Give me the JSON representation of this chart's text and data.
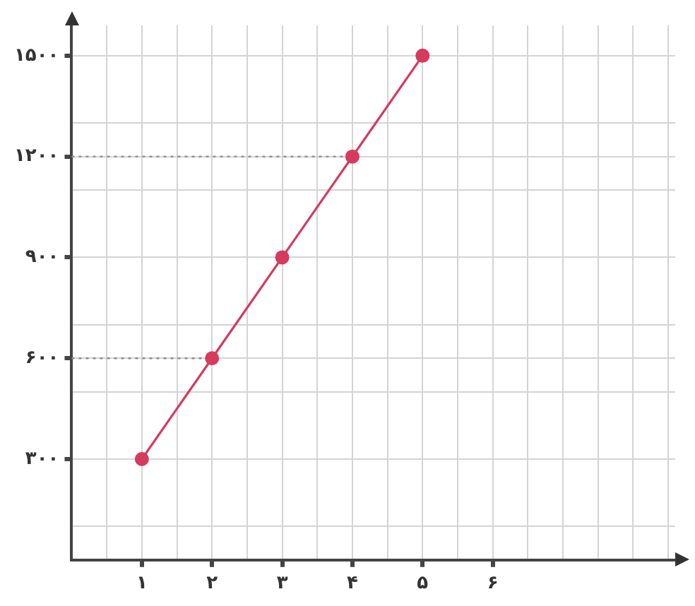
{
  "chart_data": {
    "type": "line",
    "x": [
      1,
      2,
      3,
      4,
      5
    ],
    "values": [
      300,
      600,
      900,
      1200,
      1500
    ],
    "color": "#d63a5c",
    "marker": "circle",
    "line_style": "solid",
    "xlim": [
      0,
      8.6
    ],
    "ylim": [
      0,
      1590
    ],
    "xticks": [
      {
        "value": 0.5,
        "label": null
      },
      {
        "value": 1,
        "label": "۱"
      },
      {
        "value": 1.5,
        "label": null
      },
      {
        "value": 2,
        "label": "۲"
      },
      {
        "value": 2.5,
        "label": null
      },
      {
        "value": 3,
        "label": "۳"
      },
      {
        "value": 3.5,
        "label": null
      },
      {
        "value": 4,
        "label": "۴"
      },
      {
        "value": 4.5,
        "label": null
      },
      {
        "value": 5,
        "label": "۵"
      },
      {
        "value": 5.5,
        "label": null
      },
      {
        "value": 6,
        "label": "۶"
      },
      {
        "value": 6.5,
        "label": null
      },
      {
        "value": 7,
        "label": null
      },
      {
        "value": 7.5,
        "label": null
      },
      {
        "value": 8,
        "label": null
      },
      {
        "value": 8.5,
        "label": null
      }
    ],
    "yticks": [
      {
        "value": 100,
        "label": null
      },
      {
        "value": 300,
        "label": "۳۰۰"
      },
      {
        "value": 500,
        "label": null
      },
      {
        "value": 600,
        "label": "۶۰۰"
      },
      {
        "value": 700,
        "label": null
      },
      {
        "value": 900,
        "label": "۹۰۰"
      },
      {
        "value": 1100,
        "label": null
      },
      {
        "value": 1200,
        "label": "۱۲۰۰"
      },
      {
        "value": 1300,
        "label": null
      },
      {
        "value": 1500,
        "label": "۱۵۰۰"
      }
    ],
    "grid": true,
    "ref_lines": [
      {
        "axis": "y",
        "value": 600,
        "color": "#8a8a8a",
        "line_style": "dotted"
      },
      {
        "axis": "y",
        "value": 1200,
        "color": "#8a8a8a",
        "line_style": "dotted"
      }
    ]
  }
}
